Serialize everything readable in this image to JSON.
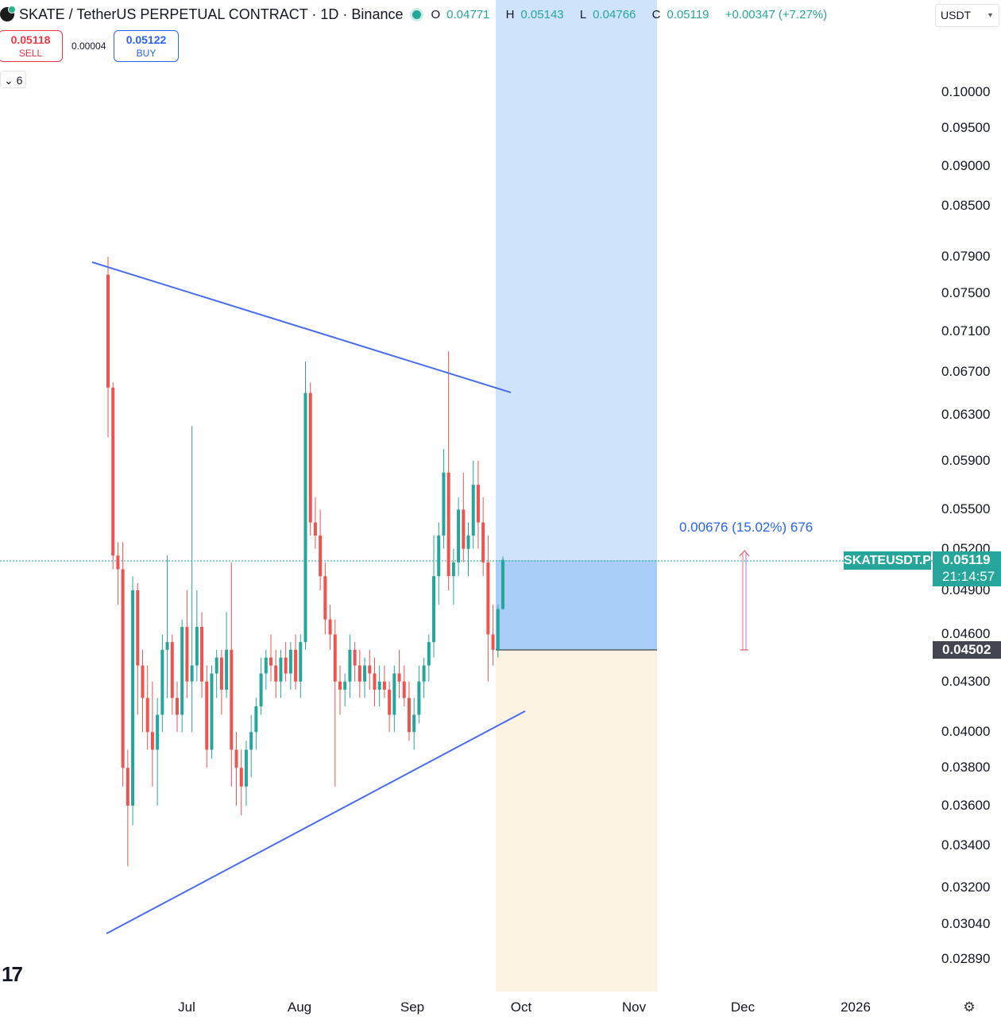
{
  "header": {
    "title": "SKATE / TetherUS PERPETUAL CONTRACT · 1D · Binance",
    "ohlc": [
      {
        "k": "O",
        "v": "0.04771"
      },
      {
        "k": "H",
        "v": "0.05143"
      },
      {
        "k": "L",
        "v": "0.04766"
      },
      {
        "k": "C",
        "v": "0.05119"
      }
    ],
    "change": "+0.00347 (+7.27%)",
    "status_color": "#26a69a"
  },
  "trade": {
    "sell_price": "0.05118",
    "sell_label": "SELL",
    "spread": "0.00004",
    "buy_price": "0.05122",
    "buy_label": "BUY"
  },
  "indicators_count": "6",
  "currency": "USDT",
  "measurement": "0.00676 (15.02%) 676",
  "last_price": {
    "symbol": "SKATEUSDT.P",
    "price": "0.05119",
    "countdown": "21:14:57"
  },
  "stop_price": "0.04502",
  "icons": {
    "chevron": "chevron-down-icon",
    "logo": "tradingview-logo-icon",
    "settings": "settings-icon"
  },
  "colors": {
    "up": "#26a69a",
    "down": "#ef5350",
    "trendline": "#4a6cf0",
    "profit_zone": "#cfe3fa",
    "entry_zone": "#a8cdf7",
    "stop_zone": "#fbf2e1"
  },
  "chart_data": {
    "type": "candlestick",
    "interval": "1D",
    "y_scale": "log",
    "y_ticks": [
      "0.10000",
      "0.09500",
      "0.09000",
      "0.08500",
      "0.07900",
      "0.07500",
      "0.07100",
      "0.06700",
      "0.06300",
      "0.05900",
      "0.05500",
      "0.05200",
      "0.04900",
      "0.04600",
      "0.04300",
      "0.04000",
      "0.03800",
      "0.03600",
      "0.03400",
      "0.03200",
      "0.03040",
      "0.02890"
    ],
    "x_labels": [
      "Jul",
      "Aug",
      "Sep",
      "Oct",
      "Nov",
      "Dec",
      "2026"
    ],
    "candles_ohlc": [
      [
        0.077,
        0.079,
        0.061,
        0.0655
      ],
      [
        0.0655,
        0.066,
        0.0505,
        0.0515
      ],
      [
        0.0515,
        0.0525,
        0.048,
        0.0505
      ],
      [
        0.0505,
        0.0525,
        0.037,
        0.038
      ],
      [
        0.038,
        0.039,
        0.033,
        0.036
      ],
      [
        0.036,
        0.05,
        0.035,
        0.049
      ],
      [
        0.049,
        0.0495,
        0.041,
        0.044
      ],
      [
        0.044,
        0.045,
        0.04,
        0.042
      ],
      [
        0.042,
        0.044,
        0.039,
        0.04
      ],
      [
        0.04,
        0.043,
        0.037,
        0.039
      ],
      [
        0.039,
        0.042,
        0.036,
        0.041
      ],
      [
        0.041,
        0.046,
        0.04,
        0.045
      ],
      [
        0.045,
        0.0515,
        0.042,
        0.0455
      ],
      [
        0.0455,
        0.046,
        0.041,
        0.042
      ],
      [
        0.042,
        0.043,
        0.04,
        0.041
      ],
      [
        0.041,
        0.047,
        0.04,
        0.0465
      ],
      [
        0.0465,
        0.049,
        0.042,
        0.043
      ],
      [
        0.043,
        0.062,
        0.04,
        0.044
      ],
      [
        0.044,
        0.049,
        0.043,
        0.0465
      ],
      [
        0.0465,
        0.0475,
        0.042,
        0.043
      ],
      [
        0.043,
        0.044,
        0.038,
        0.039
      ],
      [
        0.039,
        0.044,
        0.0385,
        0.0435
      ],
      [
        0.0435,
        0.045,
        0.042,
        0.0445
      ],
      [
        0.0445,
        0.045,
        0.041,
        0.0425
      ],
      [
        0.0425,
        0.0475,
        0.042,
        0.045
      ],
      [
        0.045,
        0.051,
        0.037,
        0.039
      ],
      [
        0.039,
        0.04,
        0.036,
        0.038
      ],
      [
        0.038,
        0.039,
        0.0355,
        0.037
      ],
      [
        0.037,
        0.0395,
        0.036,
        0.039
      ],
      [
        0.039,
        0.041,
        0.0375,
        0.04
      ],
      [
        0.04,
        0.042,
        0.039,
        0.0415
      ],
      [
        0.0415,
        0.0445,
        0.041,
        0.0435
      ],
      [
        0.0435,
        0.045,
        0.0425,
        0.0445
      ],
      [
        0.0445,
        0.046,
        0.043,
        0.044
      ],
      [
        0.044,
        0.045,
        0.042,
        0.043
      ],
      [
        0.043,
        0.045,
        0.042,
        0.0445
      ],
      [
        0.0445,
        0.0455,
        0.043,
        0.0435
      ],
      [
        0.0435,
        0.0455,
        0.0425,
        0.045
      ],
      [
        0.045,
        0.046,
        0.0425,
        0.043
      ],
      [
        0.043,
        0.046,
        0.042,
        0.0455
      ],
      [
        0.0455,
        0.068,
        0.045,
        0.065
      ],
      [
        0.065,
        0.066,
        0.053,
        0.054
      ],
      [
        0.054,
        0.056,
        0.052,
        0.053
      ],
      [
        0.053,
        0.055,
        0.049,
        0.05
      ],
      [
        0.05,
        0.051,
        0.046,
        0.047
      ],
      [
        0.047,
        0.048,
        0.045,
        0.046
      ],
      [
        0.046,
        0.047,
        0.037,
        0.043
      ],
      [
        0.043,
        0.044,
        0.041,
        0.0425
      ],
      [
        0.0425,
        0.0435,
        0.0415,
        0.043
      ],
      [
        0.043,
        0.046,
        0.042,
        0.045
      ],
      [
        0.045,
        0.0455,
        0.043,
        0.044
      ],
      [
        0.044,
        0.045,
        0.042,
        0.043
      ],
      [
        0.043,
        0.0445,
        0.042,
        0.044
      ],
      [
        0.044,
        0.045,
        0.0425,
        0.0435
      ],
      [
        0.0435,
        0.0445,
        0.0415,
        0.0425
      ],
      [
        0.0425,
        0.044,
        0.0415,
        0.043
      ],
      [
        0.043,
        0.044,
        0.042,
        0.0425
      ],
      [
        0.0425,
        0.043,
        0.04,
        0.041
      ],
      [
        0.041,
        0.044,
        0.04,
        0.0435
      ],
      [
        0.0435,
        0.045,
        0.042,
        0.043
      ],
      [
        0.043,
        0.044,
        0.0415,
        0.042
      ],
      [
        0.042,
        0.043,
        0.0395,
        0.04
      ],
      [
        0.04,
        0.042,
        0.039,
        0.041
      ],
      [
        0.041,
        0.044,
        0.0405,
        0.043
      ],
      [
        0.043,
        0.0445,
        0.042,
        0.044
      ],
      [
        0.044,
        0.046,
        0.043,
        0.0455
      ],
      [
        0.0455,
        0.053,
        0.0445,
        0.05
      ],
      [
        0.05,
        0.054,
        0.048,
        0.053
      ],
      [
        0.053,
        0.06,
        0.052,
        0.058
      ],
      [
        0.058,
        0.069,
        0.049,
        0.05
      ],
      [
        0.05,
        0.052,
        0.048,
        0.051
      ],
      [
        0.051,
        0.056,
        0.05,
        0.055
      ],
      [
        0.055,
        0.058,
        0.051,
        0.052
      ],
      [
        0.052,
        0.054,
        0.05,
        0.053
      ],
      [
        0.053,
        0.059,
        0.052,
        0.057
      ],
      [
        0.057,
        0.059,
        0.052,
        0.054
      ],
      [
        0.054,
        0.056,
        0.05,
        0.051
      ],
      [
        0.051,
        0.053,
        0.043,
        0.046
      ],
      [
        0.046,
        0.048,
        0.044,
        0.045
      ],
      [
        0.045,
        0.048,
        0.0445,
        0.0477
      ],
      [
        0.04771,
        0.05143,
        0.04766,
        0.05119
      ]
    ],
    "trendlines": [
      {
        "from": [
          0.079,
          "late Jun"
        ],
        "to": [
          0.065,
          "late Sep"
        ]
      },
      {
        "from": [
          0.03,
          "late Jun"
        ],
        "to": [
          0.041,
          "late Sep"
        ]
      }
    ],
    "position": {
      "entry": 0.05119,
      "stop": 0.04502,
      "target_zone_top": 0.1
    },
    "measurement": {
      "change": 0.00676,
      "percent": 15.02,
      "ticks": 676
    }
  }
}
